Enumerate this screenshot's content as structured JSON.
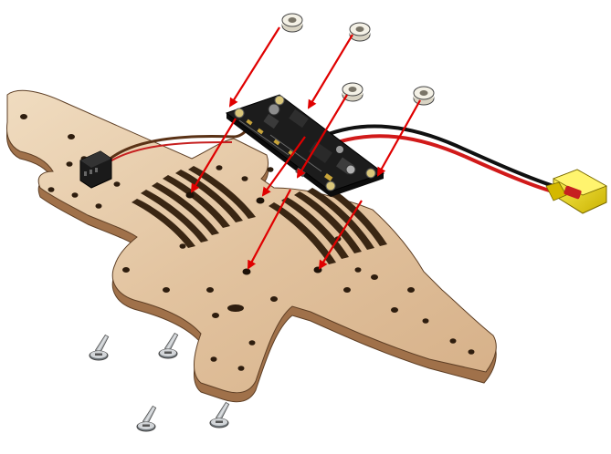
{
  "diagram": {
    "kind": "exploded assembly illustration",
    "parts": [
      {
        "id": "frame-plate",
        "icon": "wooden-frame-plate"
      },
      {
        "id": "pcb",
        "icon": "power-distribution-board"
      },
      {
        "id": "spacers",
        "icon": "nylon-spacer",
        "count": 4
      },
      {
        "id": "screws",
        "icon": "countersunk-screw",
        "count": 4
      },
      {
        "id": "connector-3pin",
        "icon": "servo-connector"
      },
      {
        "id": "battery-plug",
        "icon": "xt60-connector"
      }
    ],
    "colors": {
      "wood": "#e2c39f",
      "wood_edge": "#a0714a",
      "arrow": "#e00000",
      "pcb": "#1c1c1c",
      "plug": "#e6d000",
      "wire_red": "#d11a1a",
      "wire_black": "#111111",
      "wire_brown": "#5a3216"
    }
  }
}
